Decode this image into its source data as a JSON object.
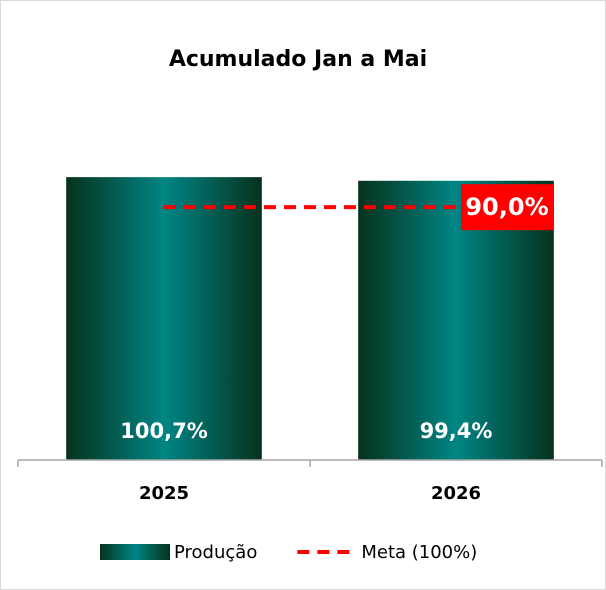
{
  "chart_data": {
    "type": "bar",
    "title": "Acumulado Jan a Mai",
    "categories": [
      "2025",
      "2026"
    ],
    "ylim": [
      0,
      110
    ],
    "series": [
      {
        "name": "Produção",
        "type": "bar",
        "color": "#008080",
        "values": [
          100.7,
          99.4
        ],
        "value_labels": [
          "100,7%",
          "99,4%"
        ]
      },
      {
        "name": "Meta (100%)",
        "type": "line",
        "color": "#ff0000",
        "values": [
          90,
          90
        ],
        "value_labels": [
          null,
          "90,0%"
        ]
      }
    ],
    "legend": "bottom"
  }
}
